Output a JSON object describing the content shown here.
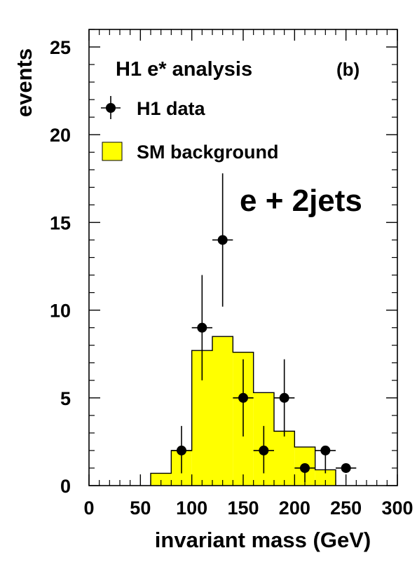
{
  "chart_data": {
    "type": "bar",
    "title": "H1 e* analysis",
    "panel_label": "(b)",
    "channel_label": "e + 2jets",
    "xlabel": "invariant mass (GeV)",
    "ylabel": "events",
    "xlim": [
      0,
      300
    ],
    "ylim": [
      0,
      26
    ],
    "x_ticks": [
      0,
      50,
      100,
      150,
      200,
      250,
      300
    ],
    "y_ticks": [
      0,
      5,
      10,
      15,
      20,
      25
    ],
    "legend": {
      "data_label": "H1 data",
      "background_label": "SM background"
    },
    "background": {
      "name": "SM background",
      "color": "#ffff00",
      "bins": [
        {
          "x0": 60,
          "x1": 80,
          "value": 0.7
        },
        {
          "x0": 80,
          "x1": 100,
          "value": 2.0
        },
        {
          "x0": 100,
          "x1": 120,
          "value": 7.7
        },
        {
          "x0": 120,
          "x1": 140,
          "value": 8.5
        },
        {
          "x0": 140,
          "x1": 160,
          "value": 7.6
        },
        {
          "x0": 160,
          "x1": 180,
          "value": 5.3
        },
        {
          "x0": 180,
          "x1": 200,
          "value": 3.1
        },
        {
          "x0": 200,
          "x1": 220,
          "value": 2.2
        },
        {
          "x0": 220,
          "x1": 240,
          "value": 0.9
        }
      ]
    },
    "data_series": {
      "name": "H1 data",
      "points": [
        {
          "x": 90,
          "y": 2,
          "err_lo": 1.3,
          "err_hi": 1.4
        },
        {
          "x": 110,
          "y": 9,
          "err_lo": 3.0,
          "err_hi": 3.0
        },
        {
          "x": 130,
          "y": 14,
          "err_lo": 3.8,
          "err_hi": 3.8
        },
        {
          "x": 150,
          "y": 5,
          "err_lo": 2.2,
          "err_hi": 2.2
        },
        {
          "x": 170,
          "y": 2,
          "err_lo": 1.3,
          "err_hi": 1.4
        },
        {
          "x": 190,
          "y": 5,
          "err_lo": 2.2,
          "err_hi": 2.2
        },
        {
          "x": 210,
          "y": 1,
          "err_lo": 0.8,
          "err_hi": 0
        },
        {
          "x": 230,
          "y": 2,
          "err_lo": 1.3,
          "err_hi": 0
        },
        {
          "x": 250,
          "y": 1,
          "err_lo": 0,
          "err_hi": 0
        }
      ]
    }
  }
}
